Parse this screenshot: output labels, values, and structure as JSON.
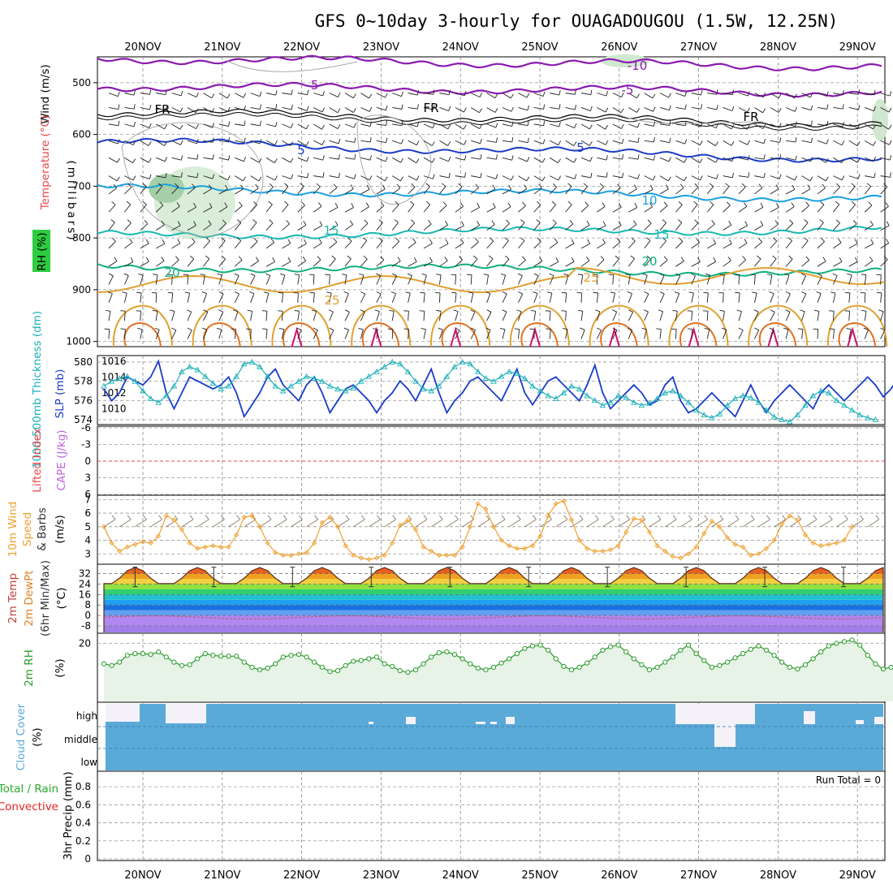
{
  "title": "GFS 0~10day 3-hourly for OUAGADOUGOU (1.5W, 12.25N)",
  "dates": [
    "20NOV",
    "21NOV",
    "22NOV",
    "23NOV",
    "24NOV",
    "25NOV",
    "26NOV",
    "27NOV",
    "28NOV",
    "29NOV"
  ],
  "colors": {
    "wind_label": "#000000",
    "temperature": "#e8484a",
    "rh_bg": "#2ecc40",
    "slp": "#1a3cc8",
    "thickness": "#1ab0b8",
    "lifted": "#e8484a",
    "cape": "#c060e0",
    "wind10": "#f0a030",
    "temp2m": "#c04040",
    "dewpt": "#e08020",
    "rh2m": "#2a9a2a",
    "cloud": "#5aaad8",
    "precip_total": "#2aaa2a",
    "precip_conv": "#e82020"
  },
  "panels": {
    "upper": {
      "ylabel": "(millibars)",
      "side_wind": "Wind (m/s)",
      "side_temp": "Temperature (°C)",
      "side_rh": "RH (%)",
      "ticks": [
        "500",
        "600",
        "700",
        "800",
        "900",
        "1000"
      ],
      "isotherm_labels": [
        "-10",
        "-5",
        "FR",
        "5",
        "10",
        "15",
        "20",
        "25"
      ]
    },
    "thickness": {
      "left_label": "1000-500mb Thickness (dm)",
      "right_label": "SLP (mb)",
      "left_ticks": [
        "580",
        "578",
        "576",
        "574"
      ],
      "right_ticks": [
        "1016",
        "1014",
        "1012",
        "1010"
      ]
    },
    "lifted": {
      "label_li": "Lifted Index",
      "label_cape": "CAPE (J/kg)",
      "ticks": [
        "-6",
        "-3",
        "0",
        "3",
        "6"
      ]
    },
    "wind10": {
      "label1": "10m Wind",
      "label2": "Speed",
      "label3": "& Barbs",
      "unit": "(m/s)",
      "ticks": [
        "7",
        "6",
        "5",
        "4",
        "3"
      ]
    },
    "temp2m": {
      "label1": "2m Temp",
      "label2": "2m DewPt",
      "label3": "(6hr Min/Max)",
      "unit": "(°C)",
      "ticks": [
        "32",
        "24",
        "16",
        "8",
        "0",
        "-8"
      ]
    },
    "rh2m": {
      "label": "2m RH",
      "unit": "(%)",
      "ticks": [
        "20"
      ]
    },
    "cloud": {
      "label": "Cloud Cover",
      "unit": "(%)",
      "levels": [
        "high",
        "middle",
        "low"
      ]
    },
    "precip": {
      "label_total": "Total / Rain",
      "label_conv": "Convective",
      "label_axis": "3hr Precip (mm)",
      "ticks": [
        "0.8",
        "0.6",
        "0.4",
        "0.2",
        "0"
      ],
      "run_total": "Run Total = 0"
    }
  },
  "chart_data": [
    {
      "type": "line",
      "title": "1000-500mb Thickness (dm) / SLP (mb)",
      "x": "3-hourly steps, 19NOV 12Z to 29NOV 12Z",
      "series": [
        {
          "name": "SLP (mb)",
          "values": [
            1012.5,
            1011,
            1012,
            1014,
            1013.5,
            1013,
            1014,
            1016,
            1012,
            1010,
            1012,
            1014,
            1013.5,
            1013,
            1012.5,
            1013,
            1014,
            1012,
            1009,
            1010.5,
            1012,
            1014,
            1015,
            1013,
            1012,
            1011,
            1013,
            1014,
            1012,
            1009.5,
            1011,
            1012.5,
            1013,
            1012,
            1011,
            1009.5,
            1011,
            1012,
            1013.5,
            1012.5,
            1011,
            1013,
            1015,
            1012,
            1009.5,
            1011,
            1012,
            1013.5,
            1014,
            1013,
            1012,
            1011,
            1013,
            1015,
            1012,
            1010.5,
            1012,
            1013.5,
            1014,
            1013,
            1012,
            1011,
            1013,
            1015.5,
            1012,
            1010,
            1011,
            1012,
            1013,
            1012,
            1010.5,
            1011,
            1013,
            1014,
            1011,
            1009.5,
            1010,
            1011,
            1012,
            1011,
            1010,
            1009,
            1011,
            1013,
            1011,
            1009.5,
            1011,
            1012,
            1013,
            1012,
            1011,
            1010,
            1012,
            1013,
            1012,
            1011,
            1012,
            1013,
            1014,
            1013,
            1011.5,
            1012.5,
            1014,
            1015.5,
            1014
          ]
        },
        {
          "name": "Thickness (dm)",
          "values": [
            577.5,
            578,
            578.3,
            578.5,
            578,
            577,
            576.2,
            575.8,
            576.5,
            577.5,
            579,
            579.5,
            579.2,
            578.5,
            577.8,
            577.2,
            577.5,
            578.5,
            579.8,
            580,
            579.5,
            578.5,
            577.5,
            577,
            577.5,
            578,
            578.5,
            578.3,
            578,
            577.5,
            577.2,
            577,
            577.3,
            578,
            578.5,
            579,
            579.5,
            580,
            579.8,
            579,
            578,
            577.2,
            577,
            577.5,
            578.5,
            579.5,
            580,
            579.8,
            579,
            578.3,
            578,
            578.5,
            579,
            578.8,
            578.3,
            577.5,
            577,
            576.5,
            576.2,
            576.8,
            577.5,
            577.2,
            576.5,
            576,
            575.5,
            575.8,
            576.5,
            576.3,
            575.8,
            575.5,
            575.7,
            576.2,
            576.8,
            577,
            576.5,
            575.8,
            575,
            574.5,
            574.2,
            574.6,
            575.5,
            576.2,
            576.5,
            576.3,
            575.8,
            575,
            574.3,
            574,
            573.8,
            574.5,
            575.5,
            576.5,
            577,
            576.8,
            576,
            575.5,
            575,
            574.5,
            574.2,
            574
          ]
        }
      ],
      "ylim": [
        573.5,
        580.5
      ],
      "y2lim": [
        1008,
        1016.5
      ]
    },
    {
      "type": "line",
      "title": "10m Wind Speed (m/s)",
      "series": [
        {
          "name": "10m Wind Speed",
          "values": [
            5,
            3.8,
            3.2,
            3.5,
            3.7,
            3.9,
            3.8,
            4.3,
            5.8,
            5.5,
            4.8,
            3.8,
            3.4,
            3.5,
            3.6,
            3.5,
            3.5,
            4.4,
            5.7,
            5.8,
            5,
            3.8,
            3.1,
            2.9,
            2.9,
            3,
            3.1,
            3.8,
            5.3,
            5.7,
            5,
            3.6,
            2.9,
            2.7,
            2.6,
            2.7,
            2.9,
            3.8,
            5.1,
            5.5,
            4.8,
            3.5,
            3.2,
            2.9,
            2.9,
            2.9,
            3.5,
            5,
            6.7,
            6.3,
            5,
            4,
            3.6,
            3.4,
            3.4,
            3.6,
            4.3,
            5.8,
            6.7,
            6.9,
            5.5,
            4,
            3.4,
            3.2,
            3.2,
            3.3,
            3.6,
            4.6,
            5.6,
            5.5,
            4.6,
            3.6,
            3.2,
            2.8,
            2.7,
            3,
            3.5,
            4.5,
            5.4,
            5,
            4.2,
            3.7,
            3.5,
            2.9,
            3,
            3.4,
            4,
            5.2,
            5.8,
            5.5,
            4.4,
            3.8,
            3.6,
            3.7,
            3.8,
            4,
            5
          ]
        }
      ],
      "ylim": [
        2.3,
        7.2
      ]
    },
    {
      "type": "area",
      "title": "2m RH (%)",
      "series": [
        {
          "name": "2m RH",
          "values": [
            8,
            7,
            9,
            13,
            14,
            14,
            13.5,
            15,
            12,
            9,
            7,
            7.5,
            11,
            14,
            13,
            12.5,
            12.5,
            12.5,
            9,
            6,
            4.5,
            5.5,
            8,
            12,
            13,
            13.5,
            12,
            9,
            6,
            3.5,
            4,
            7,
            9.5,
            10,
            11,
            12,
            8,
            6.5,
            4,
            3,
            4.5,
            8,
            12,
            14.5,
            15,
            13.5,
            11,
            8,
            5.5,
            4.5,
            6,
            8.5,
            11,
            14,
            17,
            18.5,
            19,
            16,
            11,
            6.5,
            4.5,
            6,
            8.5,
            12,
            16,
            18,
            19,
            15,
            11,
            7.5,
            4.5,
            6,
            9,
            12,
            16,
            19,
            14,
            10,
            6,
            7,
            9,
            11.5,
            14,
            16.5,
            18.5,
            16,
            13,
            9,
            6,
            5,
            7.5,
            11,
            15,
            18.5,
            20,
            21,
            22,
            19,
            13,
            8,
            5,
            6,
            8,
            10,
            13,
            15,
            17,
            17.5
          ]
        }
      ],
      "ylim": [
        -14,
        25
      ]
    },
    {
      "type": "area",
      "title": "2m Temp / 2m DewPt (°C)",
      "series": [
        {
          "name": "2m Temp max",
          "values": [
            37,
            37,
            37,
            37,
            37,
            37,
            37,
            37,
            37,
            37
          ]
        },
        {
          "name": "2m Temp min",
          "values": [
            22,
            22,
            22,
            22,
            22,
            22,
            22,
            22,
            22,
            22
          ]
        },
        {
          "name": "2m DewPt",
          "values": [
            -1,
            -2,
            -2,
            -1,
            -2,
            -1,
            -1,
            -1,
            -1,
            -1
          ]
        }
      ],
      "ylim": [
        -13,
        38
      ]
    }
  ]
}
